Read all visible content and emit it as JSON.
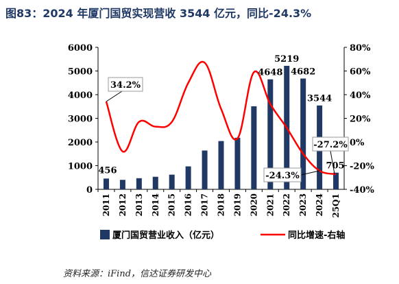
{
  "title": "图83：2024 年厦门国贸实现营收 3544 亿元，同比-24.3%",
  "source": "资料来源：iFind，信达证券研发中心",
  "colors": {
    "bar": "#1f3864",
    "line": "#ff0000",
    "title": "#1f3864"
  },
  "chart_data": {
    "type": "bar",
    "categories": [
      "2011",
      "2012",
      "2013",
      "2014",
      "2015",
      "2016",
      "2017",
      "2018",
      "2019",
      "2020",
      "2021",
      "2022",
      "2023",
      "2024",
      "25Q1"
    ],
    "series": [
      {
        "name": "厦门国贸营业收入（亿元）",
        "type": "bar",
        "axis": "left",
        "values": [
          456,
          400,
          470,
          530,
          620,
          970,
          1640,
          2040,
          2180,
          3510,
          4648,
          5219,
          4682,
          3544,
          705
        ]
      },
      {
        "name": "同比增速-右轴",
        "type": "line",
        "axis": "right",
        "values": [
          34.2,
          -8,
          17,
          13,
          17,
          50,
          67,
          28,
          3,
          59,
          32,
          12,
          -10,
          -24.3,
          -27.2
        ]
      }
    ],
    "left_axis": {
      "ylim": [
        0,
        6000
      ],
      "ticks": [
        "0",
        "1000",
        "2000",
        "3000",
        "4000",
        "5000",
        "6000"
      ]
    },
    "right_axis": {
      "ylim": [
        -40,
        80
      ],
      "ticks": [
        "-40%",
        "-20%",
        "0%",
        "20%",
        "40%",
        "60%",
        "80%"
      ]
    },
    "legend_position": "bottom",
    "data_labels": {
      "bar_2011": "456",
      "bar_2021": "4648",
      "bar_2022": "5219",
      "bar_2023": "4682",
      "bar_2024": "3544",
      "bar_25Q1": "705",
      "line_2011": "34.2%",
      "line_2024": "-24.3%",
      "line_25Q1": "-27.2%"
    }
  }
}
